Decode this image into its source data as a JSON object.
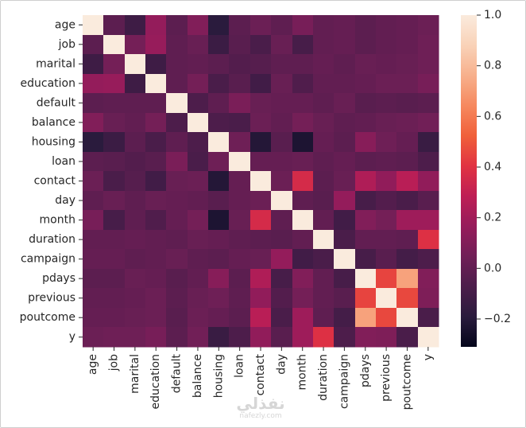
{
  "chart_data": {
    "type": "heatmap",
    "title": "",
    "xlabel": "",
    "ylabel": "",
    "labels": [
      "age",
      "job",
      "marital",
      "education",
      "default",
      "balance",
      "housing",
      "loan",
      "contact",
      "day",
      "month",
      "duration",
      "campaign",
      "pdays",
      "previous",
      "poutcome",
      "y"
    ],
    "values": [
      [
        1.0,
        -0.02,
        -0.12,
        0.16,
        -0.02,
        0.1,
        -0.19,
        -0.02,
        0.03,
        -0.01,
        0.07,
        -0.0,
        0.01,
        -0.02,
        0.0,
        0.01,
        0.03
      ],
      [
        -0.02,
        1.0,
        0.06,
        0.17,
        -0.01,
        0.02,
        -0.13,
        -0.03,
        -0.08,
        0.02,
        -0.09,
        0.0,
        0.01,
        -0.02,
        -0.0,
        0.01,
        0.04
      ],
      [
        -0.12,
        0.06,
        1.0,
        -0.12,
        -0.01,
        0.0,
        -0.02,
        -0.05,
        -0.04,
        -0.01,
        -0.01,
        0.01,
        -0.01,
        0.02,
        0.01,
        0.02,
        0.04
      ],
      [
        0.16,
        0.17,
        -0.12,
        1.0,
        -0.01,
        0.06,
        -0.08,
        -0.03,
        -0.11,
        0.02,
        -0.06,
        0.0,
        0.0,
        0.01,
        0.03,
        0.03,
        0.07
      ],
      [
        -0.02,
        -0.01,
        -0.01,
        -0.01,
        1.0,
        -0.07,
        -0.01,
        0.08,
        0.02,
        0.01,
        0.01,
        -0.01,
        0.02,
        -0.03,
        -0.02,
        -0.03,
        -0.02
      ],
      [
        0.1,
        0.02,
        0.0,
        0.06,
        -0.07,
        1.0,
        -0.07,
        -0.08,
        0.03,
        0.0,
        0.06,
        0.02,
        -0.01,
        0.0,
        0.02,
        0.03,
        0.05
      ],
      [
        -0.19,
        -0.13,
        -0.02,
        -0.08,
        -0.01,
        -0.07,
        1.0,
        0.04,
        -0.21,
        -0.03,
        -0.23,
        0.01,
        -0.02,
        0.12,
        0.04,
        0.01,
        -0.14
      ],
      [
        -0.02,
        -0.03,
        -0.05,
        -0.03,
        0.08,
        -0.08,
        0.04,
        1.0,
        0.01,
        0.01,
        0.02,
        -0.01,
        0.01,
        -0.02,
        -0.01,
        -0.02,
        -0.07
      ],
      [
        0.03,
        -0.08,
        -0.04,
        -0.11,
        0.02,
        0.03,
        -0.21,
        0.01,
        1.0,
        0.03,
        0.36,
        -0.02,
        0.02,
        0.24,
        0.15,
        0.27,
        0.15
      ],
      [
        -0.01,
        0.02,
        -0.01,
        0.02,
        0.01,
        0.0,
        -0.03,
        0.01,
        0.03,
        1.0,
        -0.01,
        -0.03,
        0.16,
        -0.09,
        -0.05,
        -0.08,
        -0.03
      ],
      [
        0.07,
        -0.09,
        -0.01,
        -0.06,
        0.01,
        0.06,
        -0.23,
        0.02,
        0.36,
        -0.01,
        1.0,
        0.0,
        -0.11,
        0.1,
        0.06,
        0.19,
        0.19
      ],
      [
        -0.0,
        0.0,
        0.01,
        0.0,
        -0.01,
        0.02,
        0.01,
        -0.01,
        -0.02,
        -0.03,
        0.0,
        1.0,
        -0.08,
        -0.0,
        0.0,
        -0.01,
        0.39
      ],
      [
        0.01,
        0.01,
        -0.01,
        0.0,
        0.02,
        -0.01,
        -0.02,
        0.01,
        0.02,
        0.16,
        -0.11,
        -0.08,
        1.0,
        -0.09,
        -0.03,
        -0.1,
        -0.07
      ],
      [
        -0.02,
        -0.02,
        0.02,
        0.01,
        -0.03,
        0.0,
        0.12,
        -0.02,
        0.24,
        -0.09,
        0.1,
        -0.0,
        -0.09,
        1.0,
        0.45,
        0.72,
        0.1
      ],
      [
        0.0,
        -0.0,
        0.01,
        0.03,
        -0.02,
        0.02,
        0.04,
        -0.01,
        0.15,
        -0.05,
        0.06,
        0.0,
        -0.03,
        0.45,
        1.0,
        0.46,
        0.09
      ],
      [
        0.01,
        0.01,
        0.02,
        0.03,
        -0.03,
        0.03,
        0.01,
        -0.02,
        0.27,
        -0.08,
        0.19,
        -0.01,
        -0.1,
        0.72,
        0.46,
        1.0,
        -0.08
      ],
      [
        0.03,
        0.04,
        0.04,
        0.07,
        -0.02,
        0.05,
        -0.14,
        -0.07,
        0.15,
        -0.03,
        0.19,
        0.39,
        -0.07,
        0.1,
        0.09,
        -0.08,
        1.0
      ]
    ],
    "sign_note": "",
    "vmin": -0.31,
    "vmax": 1.0,
    "colorbar_ticks": [
      1.0,
      0.8,
      0.6,
      0.4,
      0.2,
      0.0,
      -0.2
    ],
    "colorbar_tick_labels": [
      "1.0",
      "0.8",
      "0.6",
      "0.4",
      "0.2",
      "0.0",
      "−0.2"
    ],
    "colormap": "rocket",
    "colormap_stops": [
      "#03051a",
      "#2a1b3d",
      "#4c1d4b",
      "#701f57",
      "#961c5b",
      "#be1e55",
      "#e13342",
      "#f0603a",
      "#f6895f",
      "#f7b08c",
      "#f9d2b8",
      "#faebdd"
    ],
    "grid": false,
    "legend": "colorbar-right"
  },
  "watermark": {
    "main": "نفذلي",
    "sub": "nafezly.com"
  }
}
